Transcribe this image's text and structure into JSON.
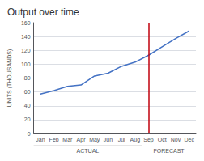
{
  "chart_data": {
    "type": "line",
    "title": "Output over time",
    "ylabel": "UNITS (THOUSANDS)",
    "categories": [
      "Jan",
      "Feb",
      "Mar",
      "Apr",
      "May",
      "Jun",
      "Jul",
      "Aug",
      "Sep",
      "Oct",
      "Nov",
      "Dec"
    ],
    "values": [
      57,
      62,
      68,
      70,
      83,
      87,
      97,
      103,
      113,
      125,
      137,
      148
    ],
    "color": "#4472C4",
    "ylim": [
      0,
      160
    ],
    "yticks": [
      0,
      20,
      40,
      60,
      80,
      100,
      120,
      140,
      160
    ],
    "grid": true,
    "vline": {
      "x": "Sep",
      "color": "#C0000C"
    },
    "annotations": [
      {
        "text": "ACTUAL",
        "from": "Jan",
        "to": "Aug"
      },
      {
        "text": "FORECAST",
        "from": "Sep",
        "to": "Dec"
      }
    ]
  }
}
